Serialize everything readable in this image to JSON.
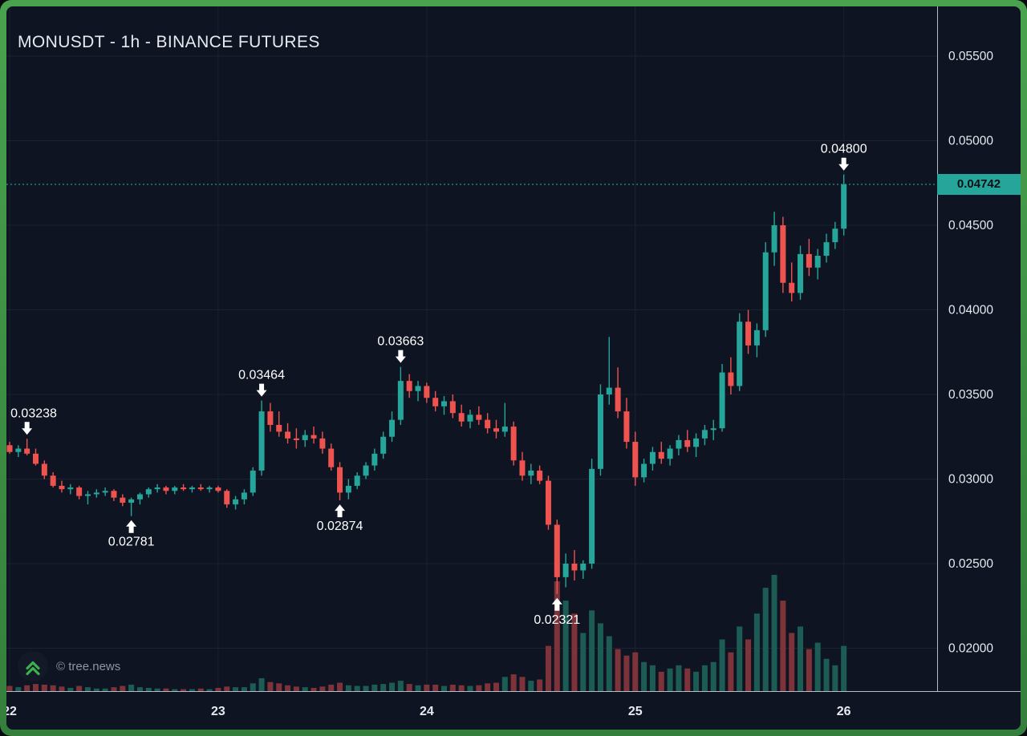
{
  "chart": {
    "watermark": "© tree.news"
  },
  "colors": {
    "background": "#0e1421",
    "frame": "#3f9142",
    "up": "#26a69a",
    "down": "#ef5350",
    "vol_up": "#1d5c55",
    "vol_down": "#7e333a",
    "grid": "#1b2230",
    "axis_line": "#b7bcc7",
    "text": "#e6e9f0",
    "muted": "#8e95a3",
    "marker": "#ffffff",
    "line": "#26a69a",
    "badge_bg": "#26a69a",
    "badge_text": "#0a1018",
    "logo_green": "#3bb24d"
  },
  "chart_data": {
    "type": "candlestick",
    "title": "MONUSDT - 1h - BINANCE FUTURES",
    "symbol": "MONUSDT",
    "timeframe": "1h",
    "exchange": "BINANCE FUTURES",
    "grid": true,
    "y_axis": {
      "side": "right",
      "tick_values": [
        0.055,
        0.05,
        0.045,
        0.04,
        0.035,
        0.03,
        0.025,
        0.02
      ],
      "tick_labels": [
        "0.05500",
        "0.05000",
        "0.04500",
        "0.04000",
        "0.03500",
        "0.03000",
        "0.02500",
        "0.02000"
      ]
    },
    "x_axis": {
      "tick_labels": [
        "22",
        "23",
        "24",
        "25",
        "26"
      ],
      "hours_per_label": 24
    },
    "last_price": {
      "value": 0.04742,
      "label": "0.04742"
    },
    "annotations": [
      {
        "label": "0.03238",
        "index": 2,
        "direction": "down"
      },
      {
        "label": "0.02781",
        "index": 14,
        "direction": "up"
      },
      {
        "label": "0.03464",
        "index": 29,
        "direction": "down"
      },
      {
        "label": "0.02874",
        "index": 38,
        "direction": "up"
      },
      {
        "label": "0.03663",
        "index": 45,
        "direction": "down"
      },
      {
        "label": "0.02321",
        "index": 63,
        "direction": "up"
      },
      {
        "label": "0.04800",
        "index": 96,
        "direction": "down"
      }
    ],
    "volume_max_units": 18,
    "candles_ohlcv": [
      [
        0.032,
        0.0322,
        0.0315,
        0.0316,
        0.8
      ],
      [
        0.0316,
        0.032,
        0.0313,
        0.0318,
        0.6
      ],
      [
        0.0318,
        0.03238,
        0.0314,
        0.0315,
        0.9
      ],
      [
        0.0315,
        0.0318,
        0.0308,
        0.0309,
        1.1
      ],
      [
        0.0309,
        0.0311,
        0.03,
        0.0302,
        1.0
      ],
      [
        0.0302,
        0.0304,
        0.0295,
        0.0296,
        0.9
      ],
      [
        0.0296,
        0.0299,
        0.0292,
        0.0294,
        0.7
      ],
      [
        0.0294,
        0.0297,
        0.0291,
        0.0295,
        0.5
      ],
      [
        0.0295,
        0.0296,
        0.0288,
        0.029,
        0.8
      ],
      [
        0.029,
        0.0293,
        0.0285,
        0.0291,
        0.6
      ],
      [
        0.0291,
        0.0294,
        0.0289,
        0.0292,
        0.4
      ],
      [
        0.0292,
        0.0295,
        0.029,
        0.0293,
        0.4
      ],
      [
        0.0293,
        0.0294,
        0.0287,
        0.0289,
        0.6
      ],
      [
        0.0289,
        0.0291,
        0.0284,
        0.0286,
        0.8
      ],
      [
        0.0286,
        0.0289,
        0.02781,
        0.0288,
        1.0
      ],
      [
        0.0288,
        0.0292,
        0.0285,
        0.0291,
        0.6
      ],
      [
        0.0291,
        0.0295,
        0.0289,
        0.0294,
        0.5
      ],
      [
        0.0294,
        0.0297,
        0.0292,
        0.0295,
        0.4
      ],
      [
        0.0295,
        0.0296,
        0.0291,
        0.0293,
        0.4
      ],
      [
        0.0293,
        0.0296,
        0.0291,
        0.0295,
        0.3
      ],
      [
        0.0295,
        0.0297,
        0.0293,
        0.0294,
        0.3
      ],
      [
        0.0294,
        0.0296,
        0.0292,
        0.0295,
        0.3
      ],
      [
        0.0295,
        0.0297,
        0.0293,
        0.0294,
        0.4
      ],
      [
        0.0294,
        0.0296,
        0.0292,
        0.0295,
        0.3
      ],
      [
        0.0295,
        0.0296,
        0.0292,
        0.0293,
        0.5
      ],
      [
        0.0293,
        0.0294,
        0.0283,
        0.0285,
        0.7
      ],
      [
        0.0285,
        0.029,
        0.0282,
        0.0288,
        0.6
      ],
      [
        0.0288,
        0.0294,
        0.0285,
        0.0292,
        0.6
      ],
      [
        0.0292,
        0.0307,
        0.029,
        0.0305,
        1.2
      ],
      [
        0.0305,
        0.03464,
        0.0302,
        0.034,
        2.0
      ],
      [
        0.034,
        0.0345,
        0.0328,
        0.0332,
        1.4
      ],
      [
        0.0332,
        0.034,
        0.0325,
        0.0328,
        1.2
      ],
      [
        0.0328,
        0.0333,
        0.0321,
        0.0324,
        0.9
      ],
      [
        0.0324,
        0.033,
        0.0318,
        0.0323,
        0.7
      ],
      [
        0.0323,
        0.0329,
        0.0319,
        0.0326,
        0.6
      ],
      [
        0.0326,
        0.0331,
        0.0321,
        0.0324,
        0.5
      ],
      [
        0.0324,
        0.0328,
        0.0315,
        0.0318,
        0.7
      ],
      [
        0.0318,
        0.0321,
        0.0305,
        0.0307,
        1.0
      ],
      [
        0.0307,
        0.031,
        0.02874,
        0.0292,
        1.3
      ],
      [
        0.0292,
        0.03,
        0.0288,
        0.0296,
        0.9
      ],
      [
        0.0296,
        0.0304,
        0.0294,
        0.0302,
        0.8
      ],
      [
        0.0302,
        0.031,
        0.03,
        0.0308,
        0.8
      ],
      [
        0.0308,
        0.0318,
        0.0305,
        0.0315,
        1.0
      ],
      [
        0.0315,
        0.0328,
        0.0312,
        0.0325,
        1.1
      ],
      [
        0.0325,
        0.034,
        0.0322,
        0.0335,
        1.3
      ],
      [
        0.0335,
        0.03663,
        0.0332,
        0.0358,
        1.6
      ],
      [
        0.0358,
        0.0362,
        0.0348,
        0.0352,
        1.1
      ],
      [
        0.0352,
        0.0358,
        0.0346,
        0.0355,
        0.9
      ],
      [
        0.0355,
        0.0357,
        0.0345,
        0.0348,
        1.0
      ],
      [
        0.0348,
        0.0352,
        0.034,
        0.0343,
        1.0
      ],
      [
        0.0343,
        0.0349,
        0.0338,
        0.0346,
        0.8
      ],
      [
        0.0346,
        0.035,
        0.0336,
        0.0339,
        1.0
      ],
      [
        0.0339,
        0.0344,
        0.0331,
        0.0334,
        0.9
      ],
      [
        0.0334,
        0.0341,
        0.033,
        0.0338,
        0.8
      ],
      [
        0.0338,
        0.0343,
        0.0332,
        0.0335,
        0.9
      ],
      [
        0.0335,
        0.0339,
        0.0327,
        0.033,
        1.2
      ],
      [
        0.033,
        0.0335,
        0.0324,
        0.0328,
        1.3
      ],
      [
        0.0328,
        0.0345,
        0.0325,
        0.0331,
        2.2
      ],
      [
        0.0331,
        0.0334,
        0.0308,
        0.0311,
        2.6
      ],
      [
        0.0311,
        0.0316,
        0.0299,
        0.0302,
        2.2
      ],
      [
        0.0302,
        0.0309,
        0.0297,
        0.0305,
        1.6
      ],
      [
        0.0305,
        0.0308,
        0.0297,
        0.0299,
        1.8
      ],
      [
        0.0299,
        0.0302,
        0.027,
        0.0273,
        7.0
      ],
      [
        0.0273,
        0.0276,
        0.02321,
        0.0242,
        17.0
      ],
      [
        0.0242,
        0.0256,
        0.0236,
        0.025,
        14.0
      ],
      [
        0.025,
        0.0258,
        0.024,
        0.0246,
        12.0
      ],
      [
        0.0246,
        0.0252,
        0.0241,
        0.025,
        9.0
      ],
      [
        0.025,
        0.0312,
        0.0247,
        0.0306,
        12.5
      ],
      [
        0.0306,
        0.0356,
        0.0302,
        0.035,
        10.5
      ],
      [
        0.035,
        0.0384,
        0.0344,
        0.0354,
        8.5
      ],
      [
        0.0354,
        0.0366,
        0.0336,
        0.034,
        6.5
      ],
      [
        0.034,
        0.0348,
        0.0318,
        0.0322,
        5.5
      ],
      [
        0.0322,
        0.0328,
        0.0296,
        0.0301,
        6.0
      ],
      [
        0.0301,
        0.0312,
        0.0298,
        0.0309,
        4.5
      ],
      [
        0.0309,
        0.0319,
        0.0305,
        0.0316,
        4.0
      ],
      [
        0.0316,
        0.0322,
        0.0309,
        0.0312,
        3.0
      ],
      [
        0.0312,
        0.032,
        0.0308,
        0.0318,
        3.5
      ],
      [
        0.0318,
        0.0326,
        0.0314,
        0.0323,
        4.0
      ],
      [
        0.0323,
        0.0329,
        0.0316,
        0.0319,
        3.5
      ],
      [
        0.0319,
        0.0327,
        0.0313,
        0.0324,
        3.0
      ],
      [
        0.0324,
        0.0332,
        0.032,
        0.0329,
        4.0
      ],
      [
        0.0329,
        0.0335,
        0.0323,
        0.033,
        4.5
      ],
      [
        0.033,
        0.0368,
        0.0328,
        0.0363,
        8.0
      ],
      [
        0.0363,
        0.0372,
        0.035,
        0.0355,
        6.0
      ],
      [
        0.0355,
        0.0398,
        0.0352,
        0.0393,
        10.0
      ],
      [
        0.0393,
        0.04,
        0.0374,
        0.0379,
        8.0
      ],
      [
        0.0379,
        0.0392,
        0.0372,
        0.0388,
        12.0
      ],
      [
        0.0388,
        0.044,
        0.0384,
        0.0434,
        16.0
      ],
      [
        0.0434,
        0.0458,
        0.0426,
        0.045,
        18.0
      ],
      [
        0.045,
        0.0455,
        0.041,
        0.0416,
        14.0
      ],
      [
        0.0416,
        0.0428,
        0.0405,
        0.041,
        9.0
      ],
      [
        0.041,
        0.0438,
        0.0406,
        0.0433,
        10.0
      ],
      [
        0.0433,
        0.0442,
        0.042,
        0.0425,
        6.5
      ],
      [
        0.0425,
        0.0436,
        0.0418,
        0.0432,
        7.5
      ],
      [
        0.0432,
        0.0445,
        0.0428,
        0.044,
        5.0
      ],
      [
        0.044,
        0.0452,
        0.0436,
        0.0448,
        4.0
      ],
      [
        0.0448,
        0.048,
        0.0444,
        0.04742,
        7.0
      ]
    ]
  }
}
